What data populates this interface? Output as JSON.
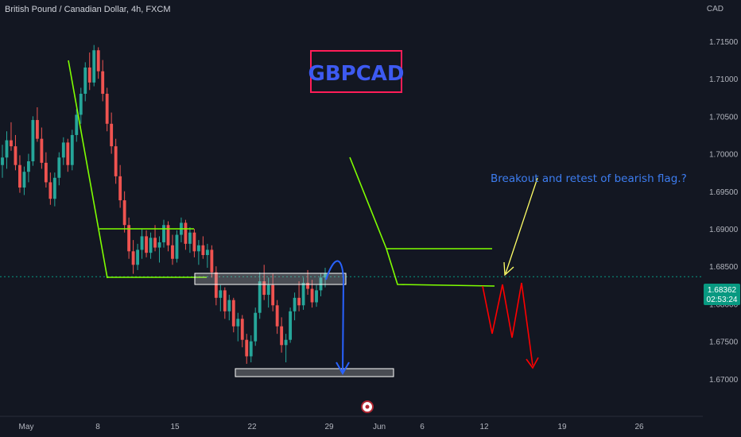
{
  "header": {
    "title": "British Pound / Canadian Dollar, 4h, FXCM",
    "currency": "CAD"
  },
  "price_label": {
    "price": "1.68362",
    "timer": "02:53:24",
    "color": "#089981"
  },
  "annotations": {
    "symbol_box": "GBPCAD",
    "note": "Breakout and retest of bearish flag.?"
  },
  "colors": {
    "background": "#131722",
    "up": "#26a69a",
    "down": "#ef5350",
    "flag": "#7fff00",
    "arrow_blue": "#2962ff",
    "arrow_yellow": "#ffff66",
    "arrow_red": "#ff0000",
    "box_border": "#ff1d58"
  },
  "chart_data": {
    "type": "candlestick",
    "title": "British Pound / Canadian Dollar, 4h, FXCM",
    "x_ticks": [
      "May",
      "8",
      "15",
      "22",
      "29",
      "Jun",
      "6",
      "12",
      "19",
      "26"
    ],
    "y_ticks": [
      "1.67000",
      "1.67500",
      "1.68000",
      "1.68500",
      "1.69000",
      "1.69500",
      "1.70000",
      "1.70500",
      "1.71000",
      "1.71500"
    ],
    "ylim": [
      1.665,
      1.7205
    ],
    "last_price": 1.68362,
    "ohlc": [
      [
        1.6985,
        1.7012,
        1.6968,
        1.6995
      ],
      [
        1.6995,
        1.703,
        1.698,
        1.7018
      ],
      [
        1.7018,
        1.7042,
        1.7004,
        1.701
      ],
      [
        1.701,
        1.7025,
        1.6978,
        1.6985
      ],
      [
        1.6985,
        1.6998,
        1.6948,
        1.6955
      ],
      [
        1.6955,
        1.6983,
        1.6945,
        1.6976
      ],
      [
        1.6976,
        1.7,
        1.6962,
        1.699
      ],
      [
        1.699,
        1.705,
        1.6984,
        1.7045
      ],
      [
        1.7045,
        1.7062,
        1.7016,
        1.702
      ],
      [
        1.702,
        1.7035,
        1.698,
        1.6988
      ],
      [
        1.6988,
        1.7002,
        1.6955,
        1.6962
      ],
      [
        1.6962,
        1.6975,
        1.6932,
        1.694
      ],
      [
        1.694,
        1.6975,
        1.693,
        1.6968
      ],
      [
        1.6968,
        1.7002,
        1.6958,
        1.6995
      ],
      [
        1.6995,
        1.7022,
        1.6985,
        1.7015
      ],
      [
        1.7015,
        1.702,
        1.6976,
        1.6985
      ],
      [
        1.6985,
        1.7032,
        1.6978,
        1.7025
      ],
      [
        1.7025,
        1.706,
        1.7016,
        1.7052
      ],
      [
        1.7052,
        1.7088,
        1.704,
        1.708
      ],
      [
        1.708,
        1.7122,
        1.707,
        1.7115
      ],
      [
        1.7115,
        1.7135,
        1.7085,
        1.7095
      ],
      [
        1.7095,
        1.7145,
        1.709,
        1.7138
      ],
      [
        1.7138,
        1.7142,
        1.71,
        1.711
      ],
      [
        1.711,
        1.7125,
        1.707,
        1.708
      ],
      [
        1.708,
        1.7088,
        1.703,
        1.704
      ],
      [
        1.704,
        1.7055,
        1.7,
        1.701
      ],
      [
        1.701,
        1.702,
        1.696,
        1.697
      ],
      [
        1.697,
        1.6985,
        1.6928,
        1.6938
      ],
      [
        1.6938,
        1.695,
        1.6895,
        1.6905
      ],
      [
        1.6905,
        1.6915,
        1.686,
        1.687
      ],
      [
        1.687,
        1.6885,
        1.684,
        1.6852
      ],
      [
        1.6852,
        1.688,
        1.6845,
        1.6872
      ],
      [
        1.6872,
        1.69,
        1.686,
        1.689
      ],
      [
        1.689,
        1.6898,
        1.6862,
        1.6868
      ],
      [
        1.6868,
        1.6895,
        1.686,
        1.6888
      ],
      [
        1.6888,
        1.6905,
        1.687,
        1.6875
      ],
      [
        1.6875,
        1.689,
        1.6855,
        1.6882
      ],
      [
        1.6882,
        1.6912,
        1.6875,
        1.6905
      ],
      [
        1.6905,
        1.691,
        1.687,
        1.6878
      ],
      [
        1.6878,
        1.6892,
        1.6852,
        1.686
      ],
      [
        1.686,
        1.6898,
        1.6855,
        1.6892
      ],
      [
        1.6892,
        1.6915,
        1.6882,
        1.6908
      ],
      [
        1.6908,
        1.6912,
        1.6872,
        1.688
      ],
      [
        1.688,
        1.6902,
        1.6868,
        1.6895
      ],
      [
        1.6895,
        1.69,
        1.6862,
        1.687
      ],
      [
        1.687,
        1.6885,
        1.6852,
        1.6878
      ],
      [
        1.6878,
        1.689,
        1.686,
        1.6865
      ],
      [
        1.6865,
        1.688,
        1.6848,
        1.6872
      ],
      [
        1.6872,
        1.6878,
        1.6835,
        1.6842
      ],
      [
        1.6842,
        1.685,
        1.6798,
        1.6808
      ],
      [
        1.6808,
        1.6825,
        1.679,
        1.6818
      ],
      [
        1.6818,
        1.6822,
        1.678,
        1.679
      ],
      [
        1.679,
        1.6812,
        1.6778,
        1.6805
      ],
      [
        1.6805,
        1.6808,
        1.6762,
        1.677
      ],
      [
        1.677,
        1.6788,
        1.675,
        1.678
      ],
      [
        1.678,
        1.6785,
        1.6742,
        1.6752
      ],
      [
        1.6752,
        1.676,
        1.672,
        1.673
      ],
      [
        1.673,
        1.6758,
        1.6722,
        1.675
      ],
      [
        1.675,
        1.6795,
        1.6744,
        1.6788
      ],
      [
        1.6788,
        1.6842,
        1.678,
        1.683
      ],
      [
        1.683,
        1.6852,
        1.6805,
        1.6812
      ],
      [
        1.6812,
        1.6835,
        1.6795,
        1.6825
      ],
      [
        1.6825,
        1.684,
        1.679,
        1.6798
      ],
      [
        1.6798,
        1.6805,
        1.676,
        1.677
      ],
      [
        1.677,
        1.6782,
        1.6735,
        1.6745
      ],
      [
        1.6745,
        1.676,
        1.6722,
        1.6752
      ],
      [
        1.6752,
        1.6795,
        1.6748,
        1.679
      ],
      [
        1.679,
        1.6815,
        1.6778,
        1.6808
      ],
      [
        1.6808,
        1.683,
        1.679,
        1.6798
      ],
      [
        1.6798,
        1.6835,
        1.6792,
        1.6828
      ],
      [
        1.6828,
        1.6845,
        1.6812,
        1.682
      ],
      [
        1.682,
        1.6832,
        1.6795,
        1.6802
      ],
      [
        1.6802,
        1.6825,
        1.6796,
        1.6818
      ],
      [
        1.6818,
        1.684,
        1.681,
        1.6835
      ],
      [
        1.6835,
        1.6848,
        1.6822,
        1.684
      ]
    ]
  }
}
